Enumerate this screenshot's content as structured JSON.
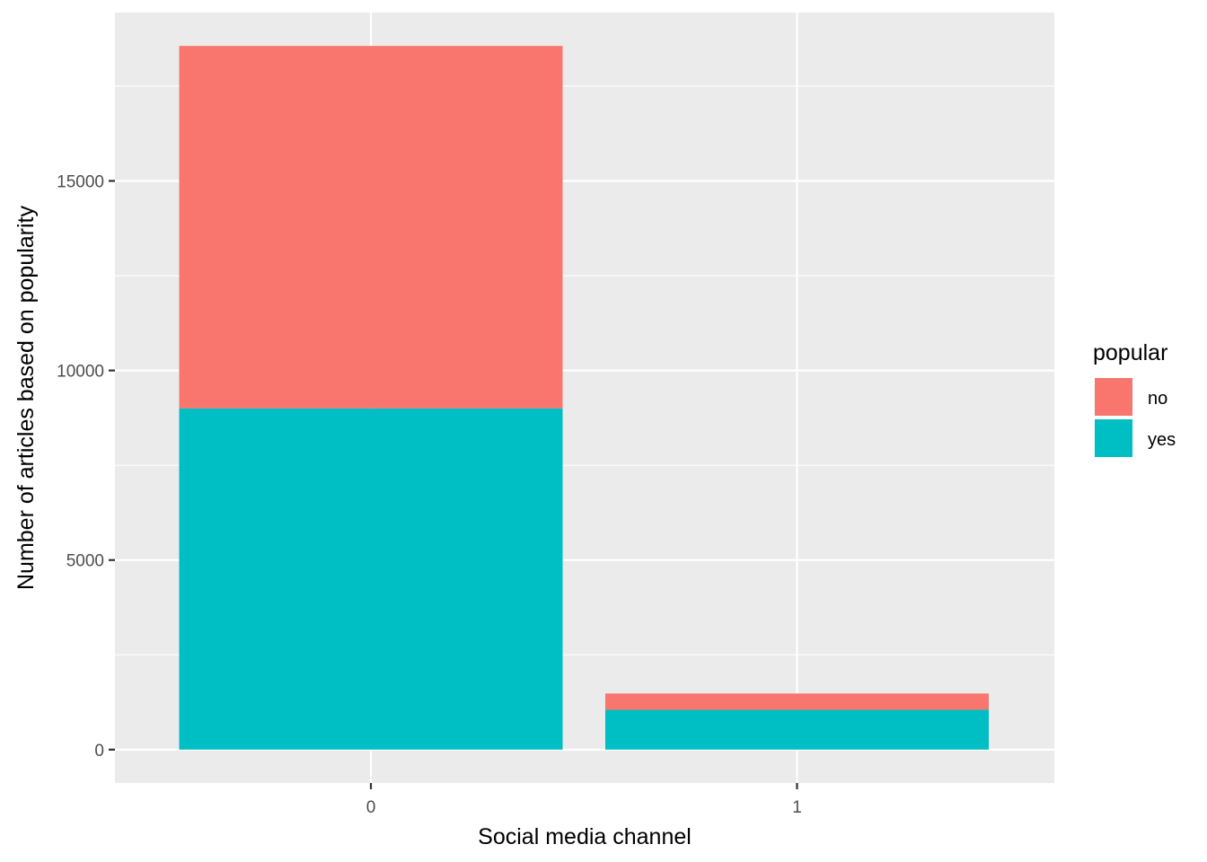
{
  "chart_data": {
    "type": "bar",
    "stacked": true,
    "categories": [
      "0",
      "1"
    ],
    "series": [
      {
        "name": "no",
        "color": "#F8766D",
        "values": [
          9560,
          430
        ]
      },
      {
        "name": "yes",
        "color": "#00BFC4",
        "values": [
          9000,
          1050
        ]
      }
    ],
    "xlabel": "Social media channel",
    "ylabel": "Number of articles based on popularity",
    "ylim": [
      -880,
      19440
    ],
    "yticks": [
      0,
      5000,
      10000,
      15000
    ],
    "legend": {
      "title": "popular",
      "position": "right"
    },
    "grid": true,
    "panel_background": "#EBEBEB",
    "grid_color": "#FFFFFF"
  }
}
